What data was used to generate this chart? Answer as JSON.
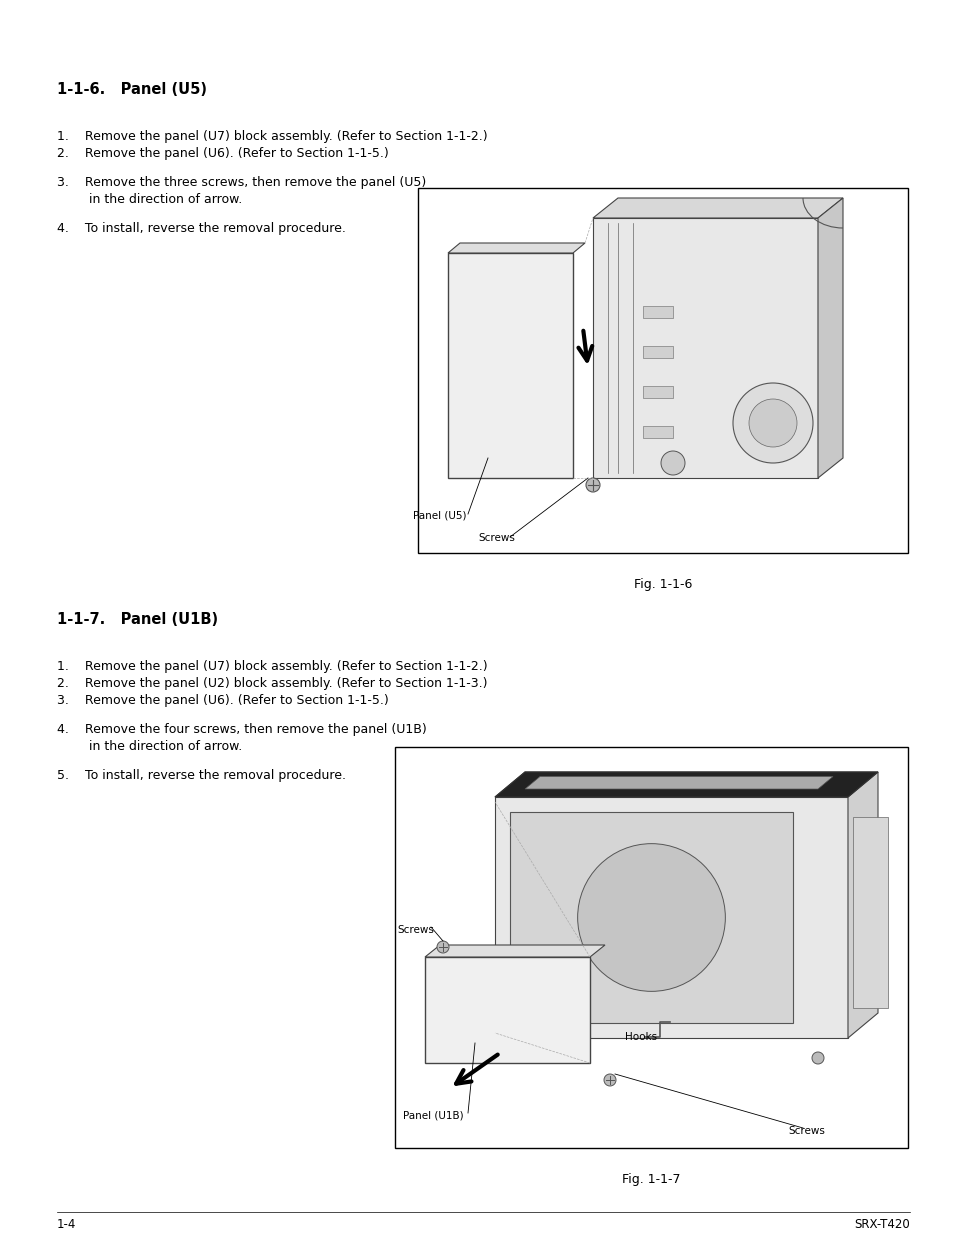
{
  "bg_color": "#ffffff",
  "section1": {
    "title": "1-1-6.   Panel (U5)",
    "item1": "1.    Remove the panel (U7) block assembly. (Refer to Section 1-1-2.)",
    "item2": "2.    Remove the panel (U6). (Refer to Section 1-1-5.)",
    "item3a": "3.    Remove the three screws, then remove the panel (U5)",
    "item3b": "        in the direction of arrow.",
    "item4": "4.    To install, reverse the removal procedure.",
    "fig_caption": "Fig. 1-1-6"
  },
  "section2": {
    "title": "1-1-7.   Panel (U1B)",
    "item1": "1.    Remove the panel (U7) block assembly. (Refer to Section 1-1-2.)",
    "item2": "2.    Remove the panel (U2) block assembly. (Refer to Section 1-1-3.)",
    "item3": "3.    Remove the panel (U6). (Refer to Section 1-1-5.)",
    "item4a": "4.    Remove the four screws, then remove the panel (U1B)",
    "item4b": "        in the direction of arrow.",
    "item5": "5.    To install, reverse the removal procedure.",
    "fig_caption": "Fig. 1-1-7"
  },
  "footer_left": "1-4",
  "footer_right": "SRX-T420",
  "title_fontsize": 10.5,
  "body_fontsize": 9.0,
  "caption_fontsize": 9.0,
  "footer_fontsize": 8.5,
  "label_fontsize": 7.5
}
